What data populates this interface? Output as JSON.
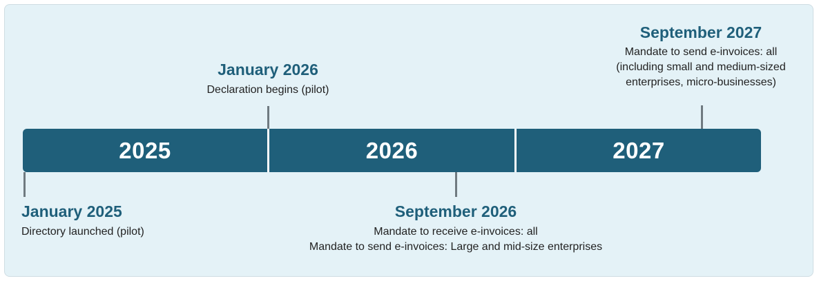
{
  "timeline": {
    "years": [
      "2025",
      "2026",
      "2027"
    ],
    "events": [
      {
        "date": "January 2025",
        "lines": [
          "Directory launched (pilot)"
        ]
      },
      {
        "date": "January 2026",
        "lines": [
          "Declaration begins (pilot)"
        ]
      },
      {
        "date": "September 2026",
        "lines": [
          "Mandate to receive e-invoices: all",
          "Mandate to send e-invoices: Large and mid-size enterprises"
        ]
      },
      {
        "date": "September 2027",
        "lines": [
          "Mandate to send e-invoices: all",
          "(including small and medium-sized",
          "enterprises, micro-businesses)"
        ]
      }
    ]
  },
  "colors": {
    "bar": "#1f5f7a",
    "title_text": "#1f5f7a",
    "background": "#e4f2f7",
    "tick": "#6f7a80"
  }
}
